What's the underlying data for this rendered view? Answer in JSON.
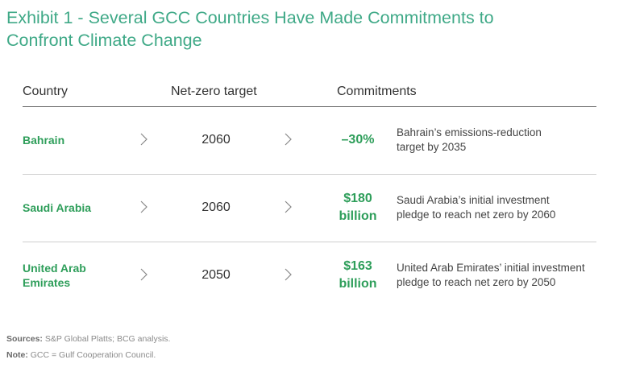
{
  "title": {
    "line1": "Exhibit 1 - Several GCC Countries Have Made Commitments to",
    "line2": "Confront Climate Change"
  },
  "table": {
    "headers": {
      "country": "Country",
      "target": "Net-zero target",
      "commitments": "Commitments"
    },
    "rows": [
      {
        "country": [
          "Bahrain"
        ],
        "target": "2060",
        "amount": [
          "–30%"
        ],
        "description": [
          "Bahrain’s emissions-reduction",
          "target by 2035"
        ]
      },
      {
        "country": [
          "Saudi Arabia"
        ],
        "target": "2060",
        "amount": [
          "$180",
          "billion"
        ],
        "description": [
          "Saudi Arabia’s initial investment",
          "pledge to reach net zero by 2060"
        ]
      },
      {
        "country": [
          "United Arab",
          "Emirates"
        ],
        "target": "2050",
        "amount": [
          "$163",
          "billion"
        ],
        "description": [
          "United Arab Emirates’ initial investment",
          "pledge to reach net zero by 2050"
        ]
      }
    ],
    "chevron_icon": "chevron-right-icon"
  },
  "footer": {
    "sources_label": "Sources:",
    "sources_text": " S&P Global Platts; BCG analysis.",
    "note_label": "Note:",
    "note_text": " GCC = Gulf Cooperation Council."
  },
  "colors": {
    "accent_title": "#3fa987",
    "accent_values": "#2e9e5a"
  }
}
